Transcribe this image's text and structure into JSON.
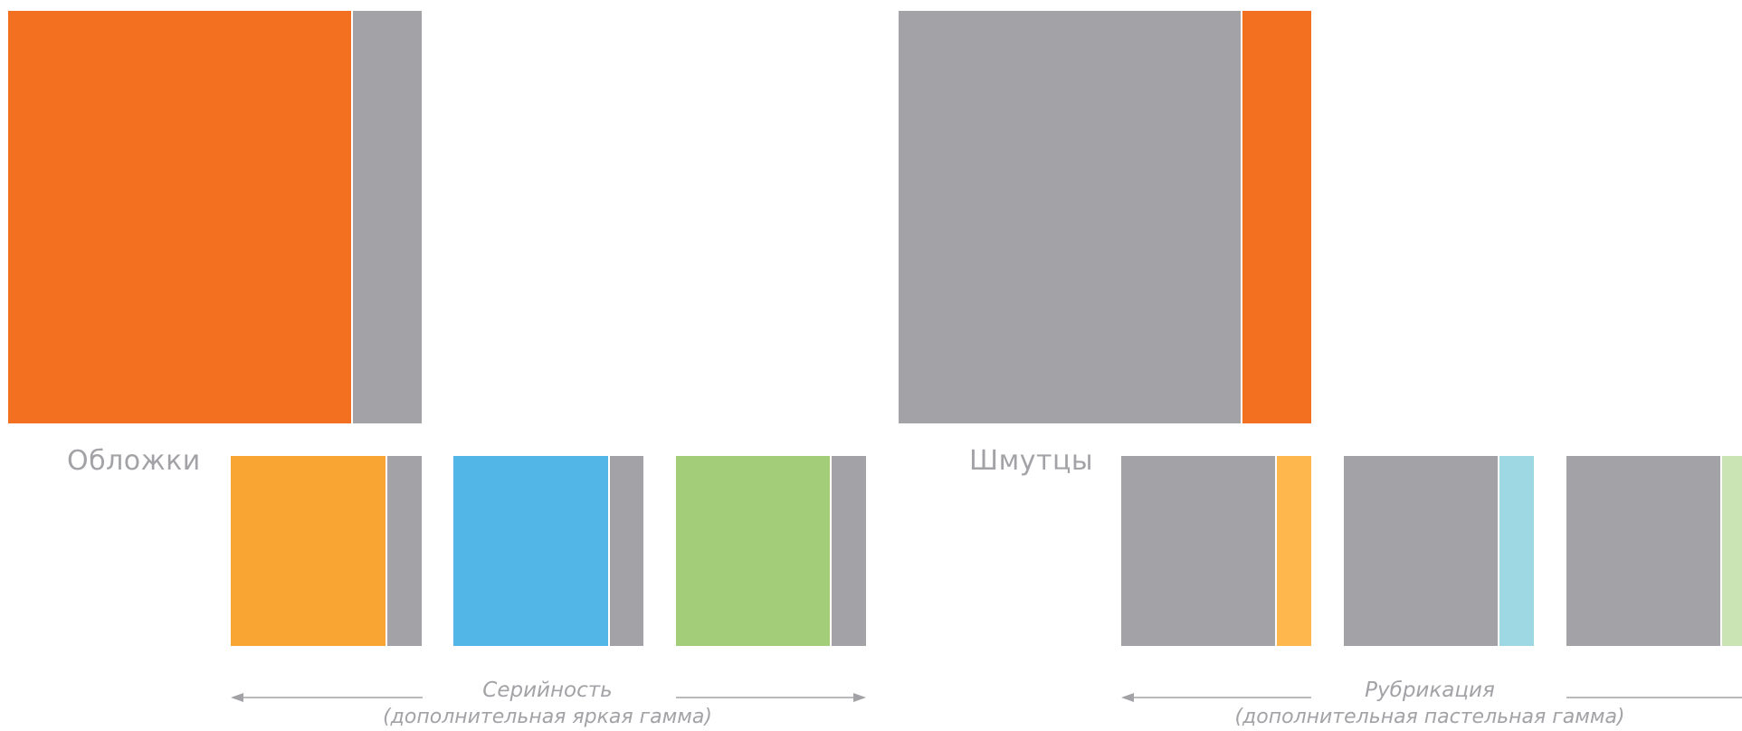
{
  "colors": {
    "gray": "#a3a2a6",
    "orange": "#f37021",
    "bright_yellow": "#f8a534",
    "bright_blue": "#52b6e6",
    "bright_green": "#a3cd79",
    "pastel_yellow": "#fdb74d",
    "pastel_blue": "#9ed8e2",
    "pastel_green": "#cbe4b4"
  },
  "covers": {
    "label": "Обложки",
    "caption_title": "Серийность",
    "caption_sub": "(дополнительная яркая гамма)"
  },
  "dividers": {
    "label": "Шмутцы",
    "caption_title": "Рубрикация",
    "caption_sub": "(дополнительная пастельная гамма)"
  }
}
